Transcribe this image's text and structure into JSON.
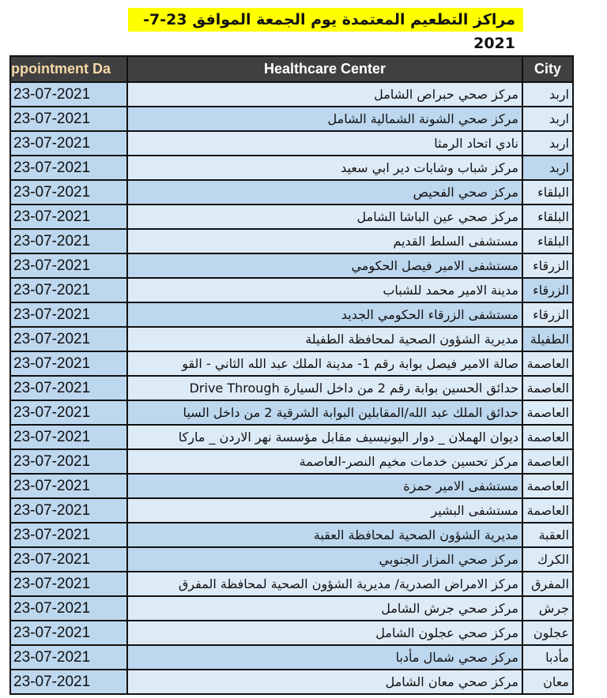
{
  "title": "مراكز التطعيم المعتمدة يوم الجمعة الموافق 23-7-2021",
  "headers": {
    "date": "ppointment Da",
    "center": "Healthcare Center",
    "city": "City"
  },
  "colors": {
    "header_bg": "#404040",
    "title_bg": "#ffff00",
    "row_light": "#ddebf7",
    "row_mid": "#bdd7ee"
  },
  "rows": [
    {
      "date": "23-07-2021",
      "center": "مركز  صحي حبراص الشامل",
      "city": "اربد",
      "shade": "light",
      "city_shade": "light"
    },
    {
      "date": "23-07-2021",
      "center": "مركز صحي الشونة الشمالية الشامل",
      "city": "اربد",
      "shade": "mid",
      "city_shade": "light"
    },
    {
      "date": "23-07-2021",
      "center": "نادي اتحاد الرمثا",
      "city": "اربد",
      "shade": "light",
      "city_shade": "light"
    },
    {
      "date": "23-07-2021",
      "center": "مركز شباب وشابات دير ابي سعيد",
      "city": "اربد",
      "shade": "light",
      "city_shade": "mid"
    },
    {
      "date": "23-07-2021",
      "center": "مركز صحي الفحيص",
      "city": "البلقاء",
      "shade": "mid",
      "city_shade": "light"
    },
    {
      "date": "23-07-2021",
      "center": "مركز صحي عين الباشا الشامل",
      "city": "البلقاء",
      "shade": "light",
      "city_shade": "light"
    },
    {
      "date": "23-07-2021",
      "center": "مستشفى السلط القديم",
      "city": "البلقاء",
      "shade": "light",
      "city_shade": "light"
    },
    {
      "date": "23-07-2021",
      "center": "مستشفى الامير فيصل الحكومي",
      "city": "الزرقاء",
      "shade": "mid",
      "city_shade": "light"
    },
    {
      "date": "23-07-2021",
      "center": "مدينة الامير محمد للشباب",
      "city": "الزرقاء",
      "shade": "light",
      "city_shade": "mid"
    },
    {
      "date": "23-07-2021",
      "center": "مستشفى الزرقاء الحكومي الجديد",
      "city": "الزرقاء",
      "shade": "mid",
      "city_shade": "light"
    },
    {
      "date": "23-07-2021",
      "center": "مديرية الشؤون الصحية لمحافظة الطفيلة",
      "city": "الطفيلة",
      "shade": "light",
      "city_shade": "mid"
    },
    {
      "date": "23-07-2021",
      "center": "صالة الامير فيصل بوابة رقم 1- مدينة الملك عبد الله الثاني - القو",
      "city": "العاصمة",
      "shade": "light",
      "city_shade": "light"
    },
    {
      "date": "23-07-2021",
      "center": "حدائق الحسين بوابة رقم 2 من داخل السيارة Drive Through",
      "city": "العاصمة",
      "shade": "light",
      "city_shade": "light"
    },
    {
      "date": "23-07-2021",
      "center": "حدائق الملك عبد الله/المقابلين البوابة الشرقية 2 من داخل السيا",
      "city": "العاصمة",
      "shade": "mid",
      "city_shade": "light"
    },
    {
      "date": "23-07-2021",
      "center": "ديوان الهملان _ دوار اليونيسيف مقابل مؤسسة نهر الاردن _ ماركا",
      "city": "العاصمة",
      "shade": "light",
      "city_shade": "light"
    },
    {
      "date": "23-07-2021",
      "center": "مركز تحسين خدمات مخيم النصر-العاصمة",
      "city": "العاصمة",
      "shade": "light",
      "city_shade": "light"
    },
    {
      "date": "23-07-2021",
      "center": "مستشفى الامير حمزة",
      "city": "العاصمة",
      "shade": "mid",
      "city_shade": "light"
    },
    {
      "date": "23-07-2021",
      "center": "مستشفى البشير",
      "city": "العاصمة",
      "shade": "light",
      "city_shade": "light"
    },
    {
      "date": "23-07-2021",
      "center": "مديرية الشؤون الصحية لمحافظة العقبة",
      "city": "العقبة",
      "shade": "mid",
      "city_shade": "light"
    },
    {
      "date": "23-07-2021",
      "center": "مركز صحي المزار الجنوبي",
      "city": "الكرك",
      "shade": "mid",
      "city_shade": "light"
    },
    {
      "date": "23-07-2021",
      "center": "مركز الامراض الصدرية/ مديرية الشؤون الصحية لمحافظة المفرق",
      "city": "المفرق",
      "shade": "light",
      "city_shade": "light"
    },
    {
      "date": "23-07-2021",
      "center": "مركز صحي جرش الشامل",
      "city": "جرش",
      "shade": "light",
      "city_shade": "light"
    },
    {
      "date": "23-07-2021",
      "center": "مركز صحي عجلون الشامل",
      "city": "عجلون",
      "shade": "light",
      "city_shade": "light"
    },
    {
      "date": "23-07-2021",
      "center": "مركز صحي شمال مأدبا",
      "city": "مأدبا",
      "shade": "mid",
      "city_shade": "light"
    },
    {
      "date": "23-07-2021",
      "center": "مركز صحي معان الشامل",
      "city": "معان",
      "shade": "light",
      "city_shade": "light"
    }
  ]
}
